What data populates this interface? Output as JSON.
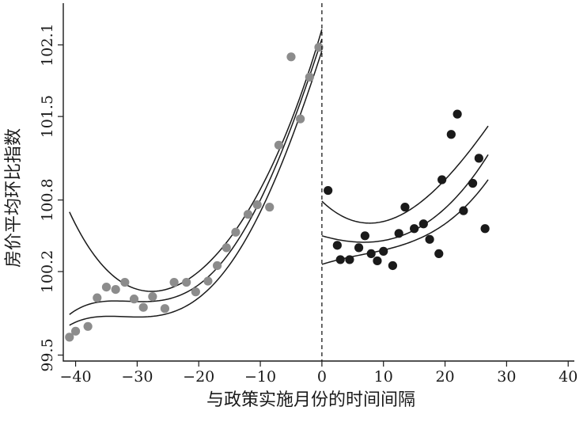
{
  "chart_data": {
    "type": "scatter",
    "xlabel": "与政策实施月份的时间间隔",
    "ylabel": "房价平均环比指数",
    "xlim": [
      -42,
      41
    ],
    "ylim": [
      99.45,
      102.45
    ],
    "x_ticks": [
      -40,
      -30,
      -20,
      -10,
      0,
      10,
      20,
      30,
      40
    ],
    "x_tick_labels": [
      "−40",
      "−30",
      "−20",
      "−10",
      "0",
      "10",
      "20",
      "30",
      "40"
    ],
    "y_ticks": [
      99.5,
      100.2,
      100.8,
      101.5,
      102.1
    ],
    "y_tick_labels": [
      "99.5",
      "100.2",
      "100.8",
      "101.5",
      "102.1"
    ],
    "policy_line_x": 0,
    "grid": false,
    "legend": "none",
    "colors": {
      "before": "#8c8c8c",
      "after": "#1a1a1a",
      "lines": "#1a1a1a"
    },
    "series": [
      {
        "points": [
          [
            -41,
            99.65
          ],
          [
            -40,
            99.7
          ],
          [
            -38,
            99.74
          ],
          [
            -36.5,
            99.98
          ],
          [
            -35,
            100.07
          ],
          [
            -33.5,
            100.05
          ],
          [
            -32,
            100.11
          ],
          [
            -30.5,
            99.97
          ],
          [
            -29,
            99.9
          ],
          [
            -27.5,
            99.99
          ],
          [
            -25.5,
            99.89
          ],
          [
            -24,
            100.11
          ],
          [
            -22,
            100.11
          ],
          [
            -20.5,
            100.03
          ],
          [
            -18.5,
            100.12
          ],
          [
            -17,
            100.25
          ],
          [
            -15.5,
            100.4
          ],
          [
            -14,
            100.53
          ],
          [
            -12,
            100.68
          ],
          [
            -10.5,
            100.76
          ],
          [
            -8.5,
            100.74
          ],
          [
            -7,
            101.26
          ],
          [
            -5,
            102.0
          ],
          [
            -3.5,
            101.48
          ],
          [
            -2,
            101.83
          ],
          [
            -0.5,
            102.08
          ]
        ]
      },
      {
        "points": [
          [
            1,
            100.88
          ],
          [
            2.5,
            100.42
          ],
          [
            3,
            100.3
          ],
          [
            4.5,
            100.3
          ],
          [
            6,
            100.4
          ],
          [
            7,
            100.5
          ],
          [
            8,
            100.35
          ],
          [
            9,
            100.29
          ],
          [
            10,
            100.37
          ],
          [
            11.5,
            100.25
          ],
          [
            12.5,
            100.52
          ],
          [
            13.5,
            100.74
          ],
          [
            15,
            100.56
          ],
          [
            16.5,
            100.6
          ],
          [
            17.5,
            100.47
          ],
          [
            19,
            100.35
          ],
          [
            19.5,
            100.97
          ],
          [
            21,
            101.35
          ],
          [
            22,
            101.52
          ],
          [
            23,
            100.71
          ],
          [
            24.5,
            100.94
          ],
          [
            25.5,
            101.15
          ],
          [
            26.5,
            100.56
          ]
        ]
      }
    ],
    "fit_curves": [
      {
        "segment": "before",
        "x_range": [
          -41,
          0
        ],
        "center": [
          [
            -41,
            100.7
          ],
          [
            -31,
            100.07
          ],
          [
            -20,
            100.2
          ],
          [
            -10,
            100.89
          ],
          [
            0,
            102.23
          ]
        ],
        "lower": [
          [
            -41,
            99.75
          ],
          [
            -31,
            99.82
          ],
          [
            -20,
            99.98
          ],
          [
            -10,
            100.7
          ],
          [
            0,
            102.05
          ]
        ],
        "upper": [
          [
            -41,
            99.84
          ],
          [
            -31,
            99.95
          ],
          [
            -20,
            100.09
          ],
          [
            -10,
            100.8
          ],
          [
            0,
            102.15
          ]
        ]
      },
      {
        "segment": "after",
        "x_range": [
          0,
          27
        ],
        "center": [
          [
            0,
            100.5
          ],
          [
            10,
            100.46
          ],
          [
            20,
            100.73
          ],
          [
            27,
            101.18
          ]
        ],
        "lower": [
          [
            0,
            100.26
          ],
          [
            10,
            100.38
          ],
          [
            20,
            100.6
          ],
          [
            27,
            100.97
          ]
        ],
        "upper": [
          [
            0,
            100.79
          ],
          [
            10,
            100.62
          ],
          [
            20,
            100.97
          ],
          [
            27,
            101.42
          ]
        ]
      }
    ]
  }
}
